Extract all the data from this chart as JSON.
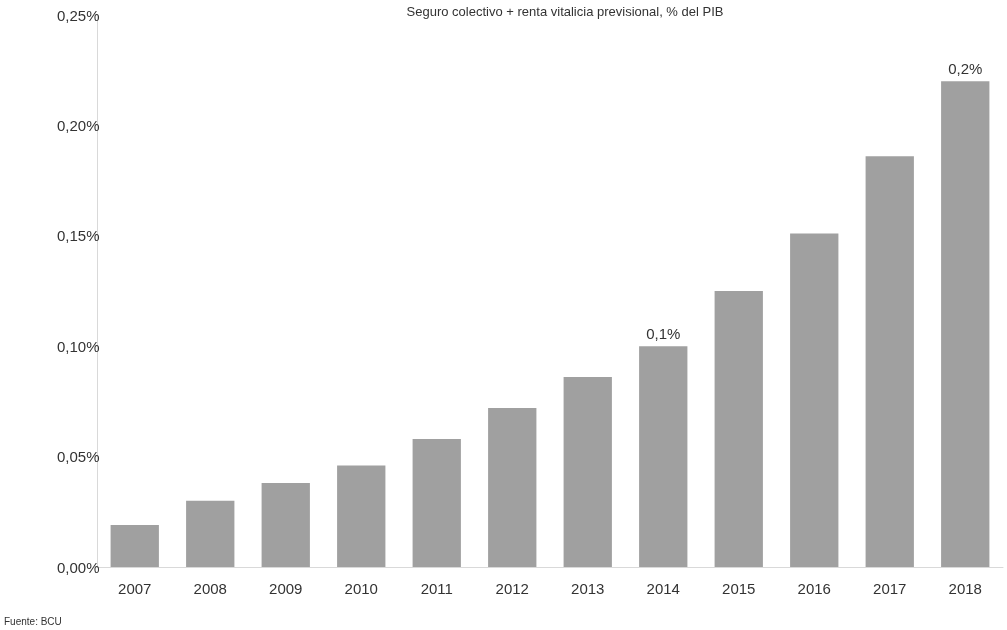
{
  "chart_data": {
    "type": "bar",
    "title": "Seguro colectivo + renta vitalicia previsional, % del PIB",
    "categories": [
      "2007",
      "2008",
      "2009",
      "2010",
      "2011",
      "2012",
      "2013",
      "2014",
      "2015",
      "2016",
      "2017",
      "2018"
    ],
    "values": [
      0.019,
      0.03,
      0.038,
      0.046,
      0.058,
      0.072,
      0.086,
      0.1,
      0.125,
      0.151,
      0.186,
      0.22
    ],
    "value_labels": [
      null,
      null,
      null,
      null,
      null,
      null,
      null,
      "0,1%",
      null,
      null,
      null,
      "0,2%"
    ],
    "color": "#a0a0a0",
    "ylim": [
      0,
      0.25
    ],
    "yticks": [
      {
        "value": 0,
        "label": "0,00%"
      },
      {
        "value": 0.05,
        "label": "0,05%"
      },
      {
        "value": 0.1,
        "label": "0,10%"
      },
      {
        "value": 0.15,
        "label": "0,15%"
      },
      {
        "value": 0.2,
        "label": "0,20%"
      },
      {
        "value": 0.25,
        "label": "0,25%"
      }
    ],
    "grid": false,
    "annotations": [
      "Fuente: BCU"
    ]
  }
}
